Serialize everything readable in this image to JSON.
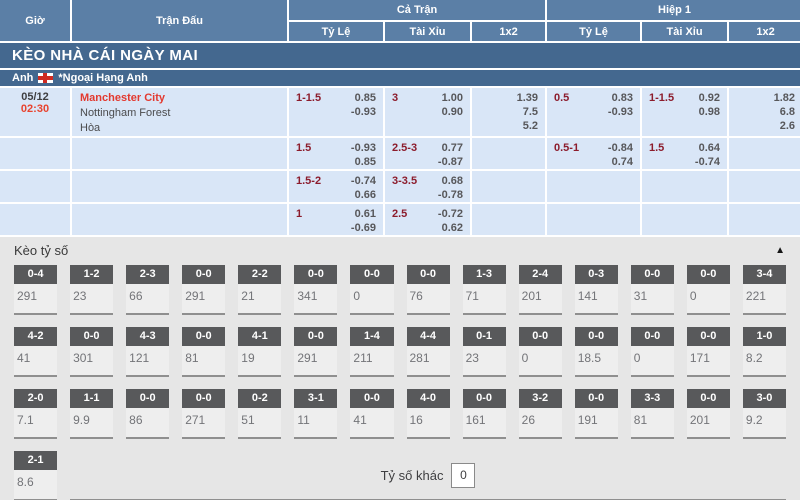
{
  "header": {
    "time": "Giờ",
    "match": "Trận Đấu",
    "full_match": "Cả Trận",
    "first_half": "Hiệp 1",
    "sub_handicap": "Tỷ Lệ",
    "sub_overunder": "Tài Xỉu",
    "sub_1x2": "1x2"
  },
  "section_title": "KÈO NHÀ CÁI NGÀY MAI",
  "league": {
    "country": "Anh",
    "name": "*Ngoại Hạng Anh",
    "flag": "england-flag"
  },
  "rows": [
    {
      "date": "05/12",
      "time": "02:30",
      "team_home": "Manchester City",
      "team_away": "Nottingham Forest",
      "draw_label": "Hòa",
      "fm_hdp": {
        "line": "1-1.5",
        "v1": "0.85",
        "v2": "-0.93"
      },
      "fm_ou": {
        "line": "3",
        "v1": "1.00",
        "v2": "0.90"
      },
      "fm_1x2": {
        "a": "1.39",
        "b": "7.5",
        "c": "5.2"
      },
      "h1_hdp": {
        "line": "0.5",
        "v1": "0.83",
        "v2": "-0.93"
      },
      "h1_ou": {
        "line": "1-1.5",
        "v1": "0.92",
        "v2": "0.98"
      },
      "h1_1x2": {
        "a": "1.82",
        "b": "6.8",
        "c": "2.6"
      }
    },
    {
      "fm_hdp": {
        "line": "1.5",
        "v1": "-0.93",
        "v2": "0.85"
      },
      "fm_ou": {
        "line": "2.5-3",
        "v1": "0.77",
        "v2": "-0.87"
      },
      "h1_hdp": {
        "line": "0.5-1",
        "v1": "-0.84",
        "v2": "0.74"
      },
      "h1_ou": {
        "line": "1.5",
        "v1": "0.64",
        "v2": "-0.74"
      }
    },
    {
      "fm_hdp": {
        "line": "1.5-2",
        "v1": "-0.74",
        "v2": "0.66"
      },
      "fm_ou": {
        "line": "3-3.5",
        "v1": "0.68",
        "v2": "-0.78"
      }
    },
    {
      "fm_hdp": {
        "line": "1",
        "v1": "0.61",
        "v2": "-0.69"
      },
      "fm_ou": {
        "line": "2.5",
        "v1": "-0.72",
        "v2": "0.62"
      }
    }
  ],
  "score_board": {
    "title": "Kèo tỷ số",
    "collapse_icon": "▲",
    "rows": [
      [
        {
          "score": "0-4",
          "odds": "291"
        },
        {
          "score": "1-2",
          "odds": "23"
        },
        {
          "score": "2-3",
          "odds": "66"
        },
        {
          "score": "0-0",
          "odds": "291"
        },
        {
          "score": "2-2",
          "odds": "21"
        },
        {
          "score": "0-0",
          "odds": "341"
        },
        {
          "score": "0-0",
          "odds": "0"
        },
        {
          "score": "0-0",
          "odds": "76"
        },
        {
          "score": "1-3",
          "odds": "71"
        },
        {
          "score": "2-4",
          "odds": "201"
        },
        {
          "score": "0-3",
          "odds": "141"
        },
        {
          "score": "0-0",
          "odds": "31"
        },
        {
          "score": "0-0",
          "odds": "0"
        },
        {
          "score": "3-4",
          "odds": "221"
        }
      ],
      [
        {
          "score": "4-2",
          "odds": "41"
        },
        {
          "score": "0-0",
          "odds": "301"
        },
        {
          "score": "4-3",
          "odds": "121"
        },
        {
          "score": "0-0",
          "odds": "81"
        },
        {
          "score": "4-1",
          "odds": "19"
        },
        {
          "score": "0-0",
          "odds": "291"
        },
        {
          "score": "1-4",
          "odds": "211"
        },
        {
          "score": "4-4",
          "odds": "281"
        },
        {
          "score": "0-1",
          "odds": "23"
        },
        {
          "score": "0-0",
          "odds": "0"
        },
        {
          "score": "0-0",
          "odds": "18.5"
        },
        {
          "score": "0-0",
          "odds": "0"
        },
        {
          "score": "0-0",
          "odds": "171"
        },
        {
          "score": "1-0",
          "odds": "8.2"
        }
      ],
      [
        {
          "score": "2-0",
          "odds": "7.1"
        },
        {
          "score": "1-1",
          "odds": "9.9"
        },
        {
          "score": "0-0",
          "odds": "86"
        },
        {
          "score": "0-0",
          "odds": "271"
        },
        {
          "score": "0-2",
          "odds": "51"
        },
        {
          "score": "3-1",
          "odds": "11"
        },
        {
          "score": "0-0",
          "odds": "41"
        },
        {
          "score": "4-0",
          "odds": "16"
        },
        {
          "score": "0-0",
          "odds": "161"
        },
        {
          "score": "3-2",
          "odds": "26"
        },
        {
          "score": "0-0",
          "odds": "191"
        },
        {
          "score": "3-3",
          "odds": "81"
        },
        {
          "score": "0-0",
          "odds": "201"
        },
        {
          "score": "3-0",
          "odds": "9.2"
        }
      ],
      [
        {
          "score": "2-1",
          "odds": "8.6"
        }
      ]
    ],
    "other_score_label": "Tỷ số khác",
    "other_score_value": "0"
  },
  "colors": {
    "header_blue": "#5b7fa6",
    "bar_blue": "#44688f",
    "row_bg": "#d9e6f7",
    "handicap_maroon": "#8c1c2c",
    "odds_gray": "#57575a",
    "highlight_red": "#e8432e",
    "chip_gray": "#58595b",
    "section_bg": "#e6e6e6"
  }
}
